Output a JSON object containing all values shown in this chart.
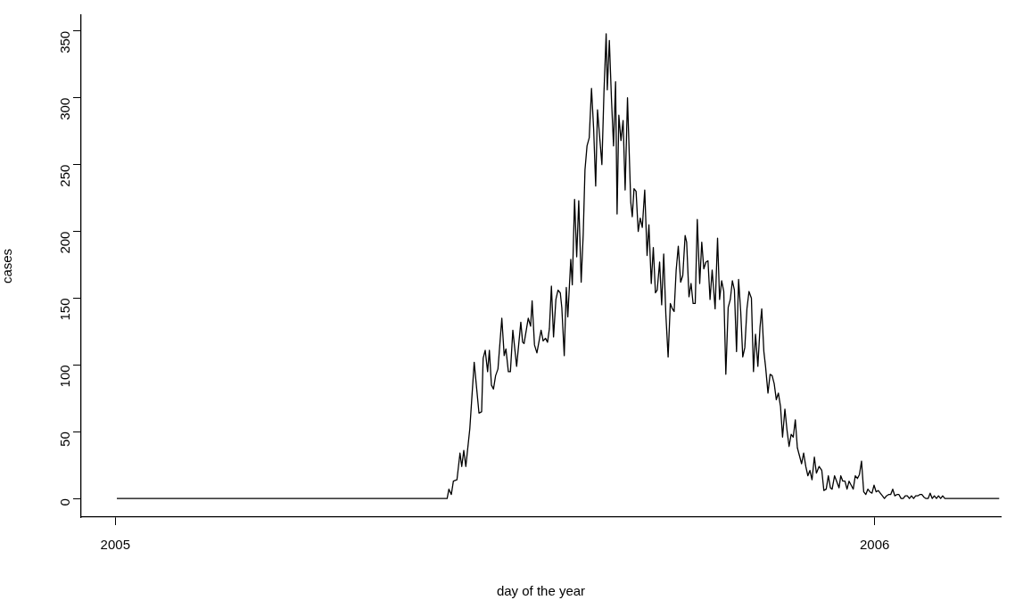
{
  "chart_data": {
    "type": "line",
    "xlabel": "day of the year",
    "ylabel": "cases",
    "xlim": [
      2004.955,
      2006.166
    ],
    "xticks": [
      2005,
      2006
    ],
    "ylim": [
      -13.9,
      361.9
    ],
    "yticks": [
      0,
      50,
      100,
      150,
      200,
      250,
      300,
      350
    ],
    "legend": false,
    "marker": "none",
    "line_style": "solid",
    "series": [
      {
        "color": "#000000",
        "x": [
          2005.002,
          2005.437,
          2005.4393,
          2005.4425,
          2005.4452,
          2005.4499,
          2005.4539,
          2005.4562,
          2005.4589,
          2005.4616,
          2005.4668,
          2005.4726,
          2005.4789,
          2005.4824,
          2005.4844,
          2005.4871,
          2005.4903,
          2005.4926,
          2005.4953,
          2005.498,
          2005.5008,
          2005.5039,
          2005.509,
          2005.5121,
          2005.5144,
          2005.5176,
          2005.5203,
          2005.5235,
          2005.5285,
          2005.534,
          2005.5364,
          2005.5383,
          2005.5438,
          2005.5469,
          2005.5489,
          2005.552,
          2005.5552,
          2005.5607,
          2005.5634,
          2005.5665,
          2005.5692,
          2005.5716,
          2005.5743,
          2005.5771,
          2005.5802,
          2005.583,
          2005.586,
          2005.588,
          2005.5912,
          2005.5939,
          2005.5959,
          2005.5998,
          2005.6018,
          2005.6048,
          2005.6076,
          2005.6103,
          2005.6135,
          2005.6162,
          2005.6185,
          2005.6212,
          2005.6241,
          2005.6271,
          2005.6299,
          2005.6326,
          2005.635,
          2005.6381,
          2005.6408,
          2005.6435,
          2005.6464,
          2005.6479,
          2005.6506,
          2005.6534,
          2005.6561,
          2005.6588,
          2005.6608,
          2005.6631,
          2005.6659,
          2005.6687,
          2005.6714,
          2005.6745,
          2005.6788,
          2005.6808,
          2005.6831,
          2005.6858,
          2005.6886,
          2005.6913,
          2005.694,
          2005.6972,
          2005.7003,
          2005.7027,
          2005.7058,
          2005.7085,
          2005.7113,
          2005.7136,
          2005.7168,
          2005.7195,
          2005.7222,
          2005.725,
          2005.728,
          2005.7309,
          2005.7336,
          2005.7359,
          2005.7386,
          2005.7414,
          2005.7445,
          2005.7473,
          2005.7504,
          2005.7524,
          2005.7555,
          2005.7582,
          2005.7609,
          2005.7637,
          2005.7664,
          2005.7696,
          2005.7723,
          2005.775,
          2005.7778,
          2005.7805,
          2005.7832,
          2005.786,
          2005.7899,
          2005.7931,
          2005.7958,
          2005.7985,
          2005.8013,
          2005.804,
          2005.8071,
          2005.8099,
          2005.8126,
          2005.8153,
          2005.8181,
          2005.8208,
          2005.8236,
          2005.8263,
          2005.829,
          2005.8318,
          2005.8345,
          2005.8377,
          2005.8404,
          2005.8431,
          2005.8462,
          2005.849,
          2005.8513,
          2005.8541,
          2005.8563,
          2005.8595,
          2005.8623,
          2005.865,
          2005.8677,
          2005.8705,
          2005.8732,
          2005.876,
          2005.8787,
          2005.8818,
          2005.8846,
          2005.8873,
          2005.89,
          2005.8928,
          2005.8955,
          2005.8982,
          2005.901,
          2005.9038,
          2005.9065,
          2005.9093,
          2005.912,
          2005.9147,
          2005.9175,
          2005.9206,
          2005.9233,
          2005.9268,
          2005.9304,
          2005.9331,
          2005.9362,
          2005.939,
          2005.9417,
          2005.944,
          2005.9472,
          2005.9499,
          2005.9531,
          2005.9554,
          2005.9581,
          2005.9609,
          2005.9636,
          2005.9663,
          2005.9691,
          2005.9718,
          2005.9745,
          2005.9773,
          2005.98,
          2005.9827,
          2005.9856,
          2005.9883,
          2005.991,
          2005.9938,
          2005.9965,
          2005.9992,
          2006.002,
          2006.0047,
          2006.0074,
          2006.0102,
          2006.0129,
          2006.0156,
          2006.0184,
          2006.0211,
          2006.0238,
          2006.0266,
          2006.0293,
          2006.032,
          2006.0348,
          2006.0376,
          2006.0403,
          2006.043,
          2006.0458,
          2006.0485,
          2006.0513,
          2006.054,
          2006.0567,
          2006.0595,
          2006.0622,
          2006.0649,
          2006.0677,
          2006.0704,
          2006.0731,
          2006.0759,
          2006.0786,
          2006.0814,
          2006.0841,
          2006.0869,
          2006.0896,
          2006.0924,
          2006.164
        ],
        "values": [
          0,
          0,
          7,
          3,
          13,
          14,
          34,
          24,
          36,
          24,
          52,
          102,
          64,
          65,
          105,
          111,
          95,
          111,
          85,
          82,
          92,
          97,
          135,
          107,
          112,
          95,
          95,
          126,
          99,
          132,
          117,
          116,
          135,
          129,
          148,
          115,
          109,
          126,
          118,
          120,
          117,
          127,
          159,
          121,
          149,
          156,
          154,
          143,
          107,
          158,
          136,
          179,
          160,
          224,
          181,
          223,
          162,
          198,
          246,
          264,
          270,
          307,
          277,
          234,
          291,
          269,
          250,
          304,
          348,
          306,
          343,
          299,
          264,
          312,
          213,
          287,
          268,
          283,
          231,
          300,
          222,
          211,
          232,
          230,
          200,
          210,
          203,
          231,
          182,
          205,
          161,
          188,
          154,
          156,
          177,
          145,
          183,
          138,
          106,
          146,
          142,
          140,
          171,
          189,
          162,
          167,
          197,
          192,
          151,
          161,
          146,
          146,
          209,
          161,
          192,
          172,
          177,
          178,
          149,
          171,
          142,
          195,
          149,
          163,
          155,
          93,
          143,
          149,
          163,
          156,
          110,
          164,
          140,
          106,
          113,
          142,
          155,
          150,
          95,
          123,
          99,
          128,
          142,
          110,
          99,
          79,
          93,
          92,
          86,
          74,
          79,
          69,
          46,
          67,
          51,
          39,
          48,
          46,
          59,
          38,
          32,
          26,
          34,
          24,
          17,
          21,
          14,
          31,
          19,
          24,
          21,
          6,
          7,
          17,
          8,
          7,
          17,
          13,
          8,
          17,
          13,
          13,
          7,
          13,
          10,
          7,
          17,
          15,
          18,
          28,
          5,
          3,
          7,
          5,
          4,
          10,
          5,
          6,
          4,
          2,
          0,
          2,
          3,
          3,
          7,
          2,
          3,
          3,
          0,
          0,
          2,
          2,
          0,
          2,
          0,
          2,
          2,
          3,
          3,
          1,
          0,
          0,
          4,
          0,
          2,
          0,
          2,
          0,
          2,
          0,
          0
        ]
      }
    ]
  }
}
